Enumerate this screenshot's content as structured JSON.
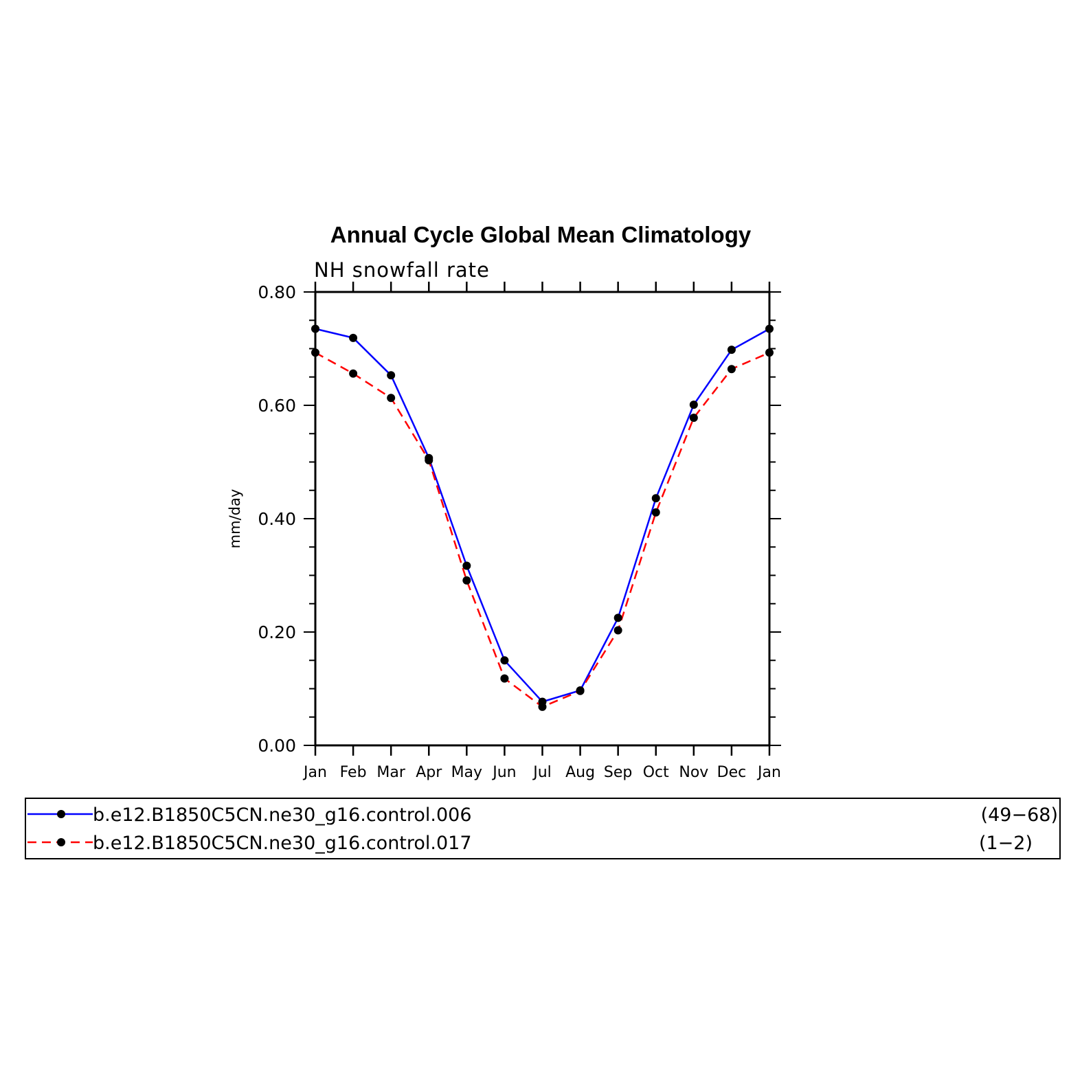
{
  "chart_data": {
    "type": "line",
    "title": "Annual Cycle Global Mean Climatology",
    "subtitle": "NH snowfall rate",
    "xlabel": "",
    "ylabel": "mm/day",
    "categories": [
      "Jan",
      "Feb",
      "Mar",
      "Apr",
      "May",
      "Jun",
      "Jul",
      "Aug",
      "Sep",
      "Oct",
      "Nov",
      "Dec",
      "Jan"
    ],
    "ylim": [
      0,
      0.8
    ],
    "yticks": [
      "0.00",
      "0.20",
      "0.40",
      "0.60",
      "0.80"
    ],
    "grid": false,
    "legend_position": "bottom",
    "series": [
      {
        "name": "b.e12.B1850C5CN.ne30_g16.control.006",
        "years": "(49−68)",
        "color": "#0000ff",
        "dash": "solid",
        "values": [
          0.735,
          0.719,
          0.653,
          0.507,
          0.317,
          0.15,
          0.077,
          0.097,
          0.225,
          0.436,
          0.601,
          0.698,
          0.735
        ]
      },
      {
        "name": "b.e12.B1850C5CN.ne30_g16.control.017",
        "years": "(1−2)",
        "color": "#ff0000",
        "dash": "dashed",
        "values": [
          0.693,
          0.656,
          0.613,
          0.503,
          0.291,
          0.118,
          0.068,
          0.096,
          0.203,
          0.411,
          0.578,
          0.664,
          0.693
        ]
      }
    ]
  }
}
